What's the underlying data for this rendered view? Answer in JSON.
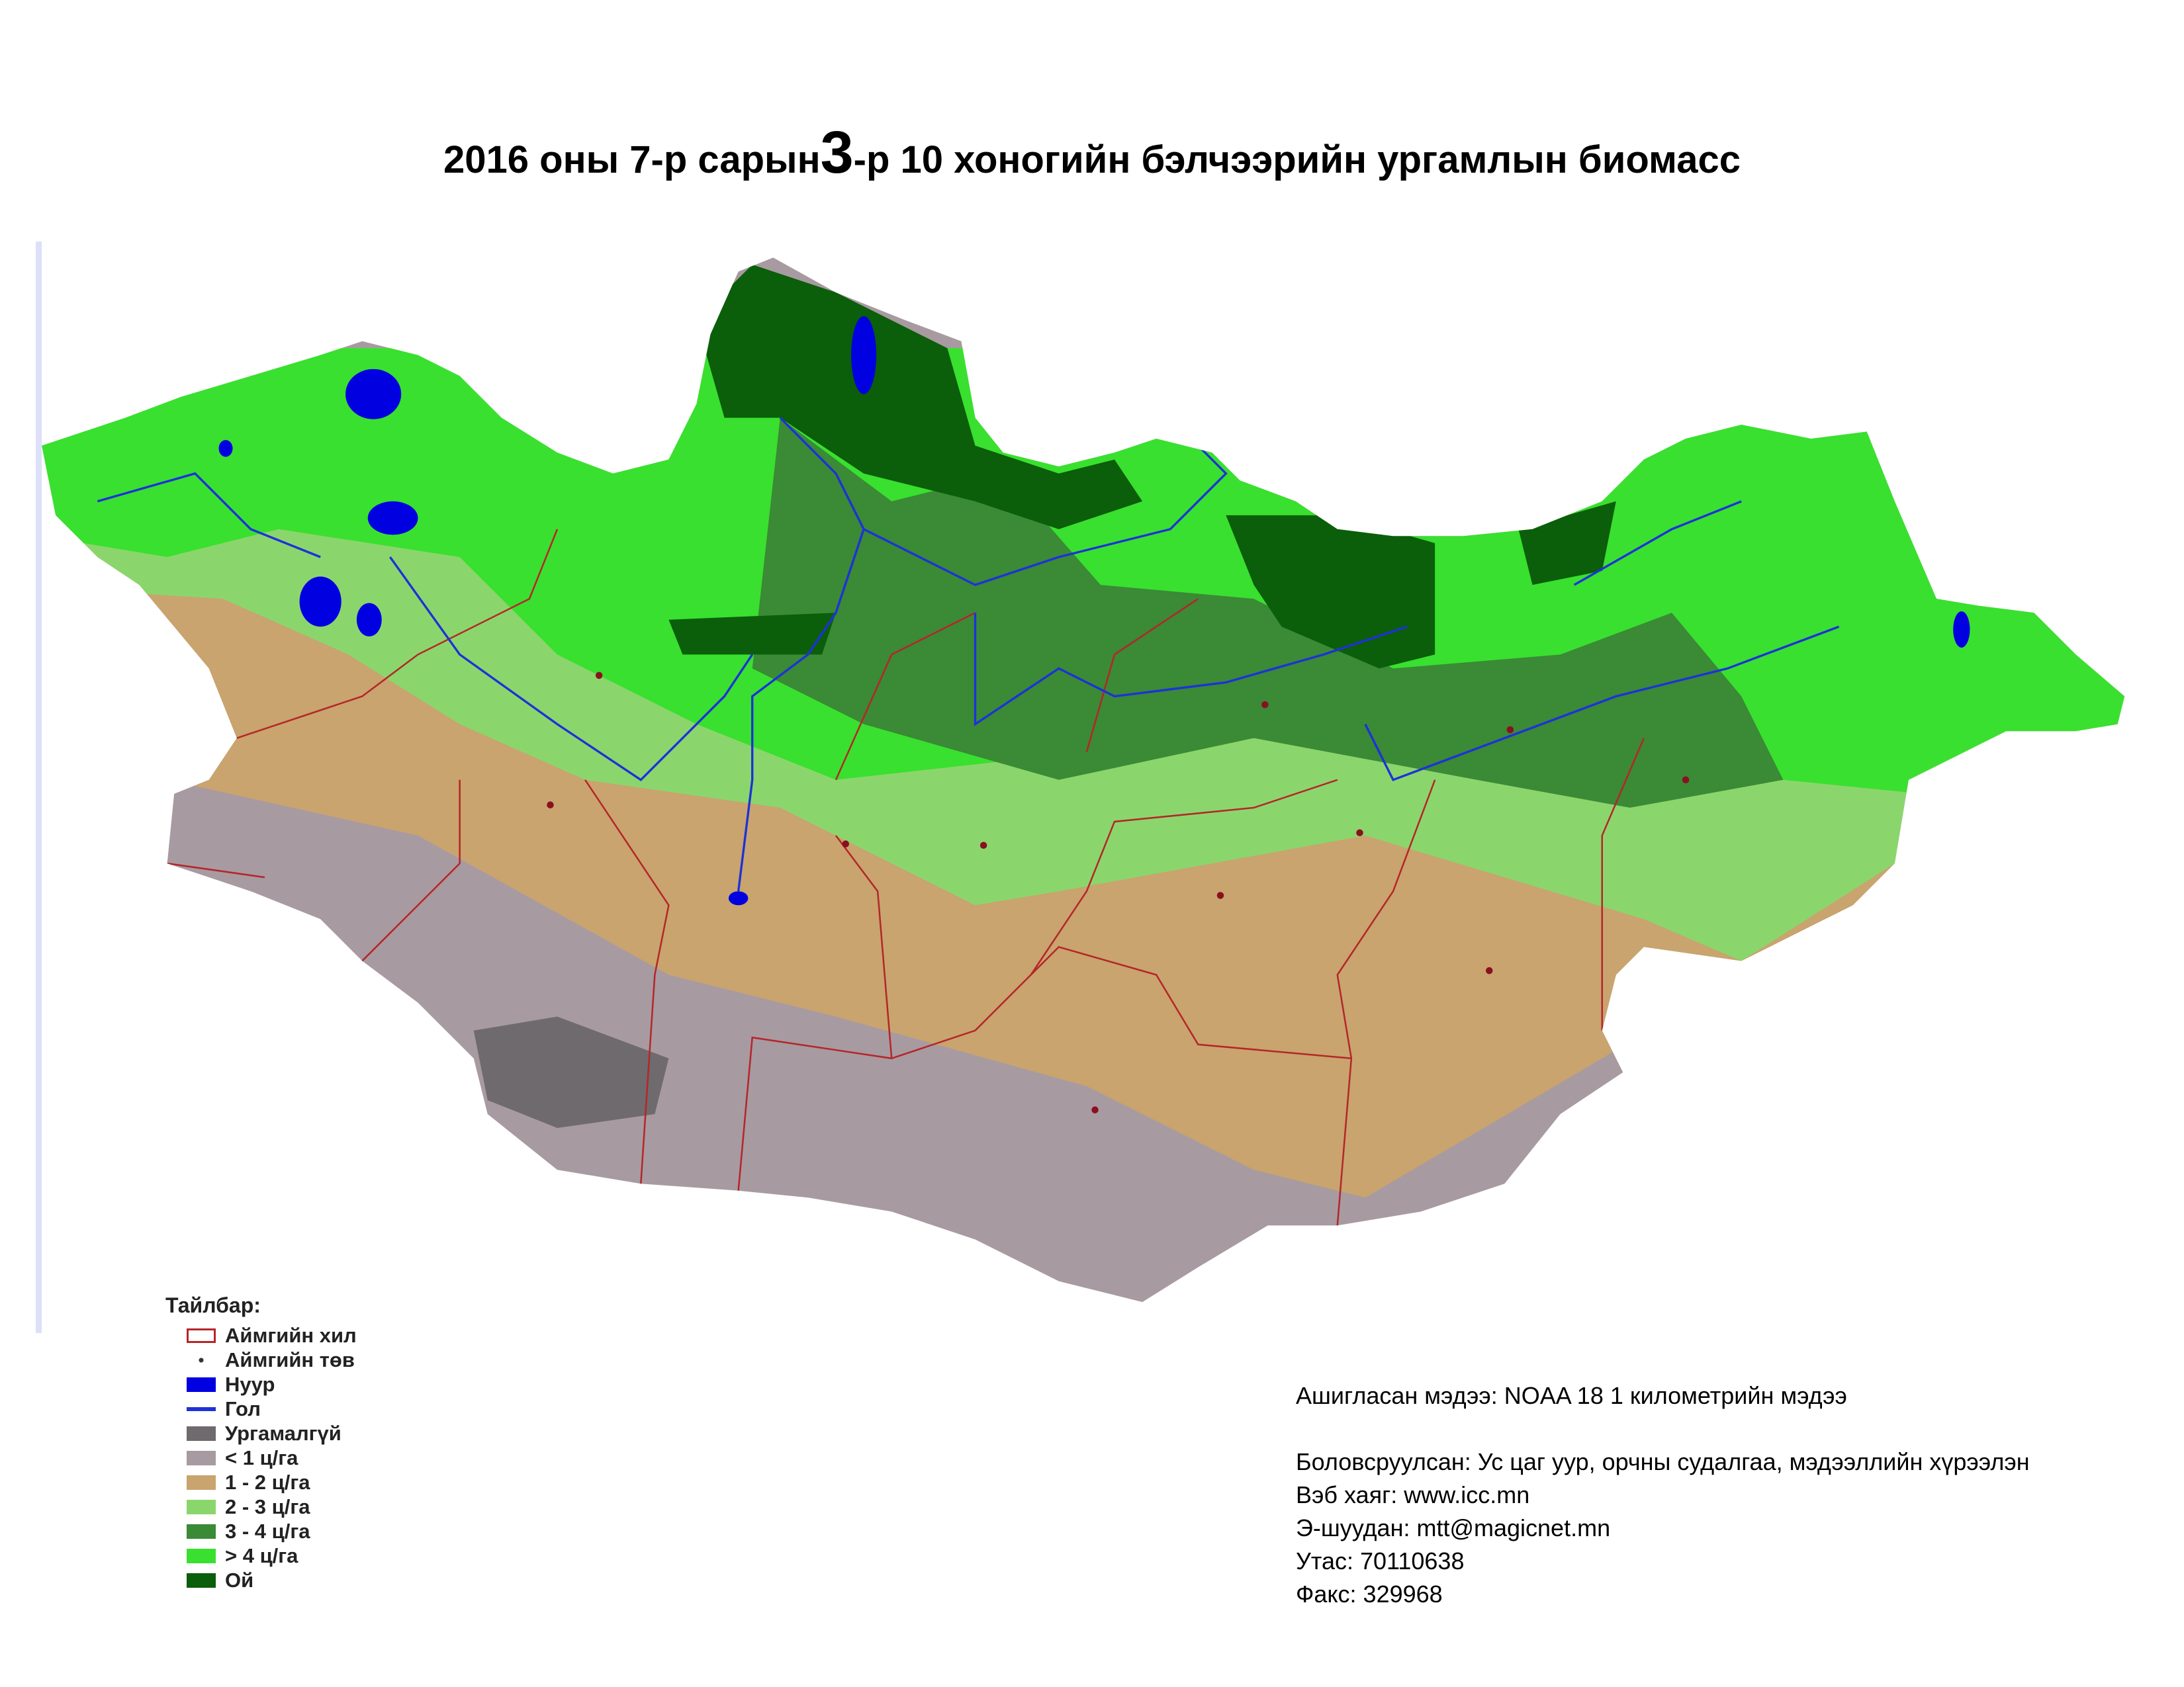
{
  "header": {
    "title_start": "2016 оны 7-р сарын",
    "title_decade": "3",
    "title_end": "-р 10 хоногийн бэлчээрийн ургамлын биомасс"
  },
  "legend": {
    "title": "Тайлбар:",
    "items": [
      "Аймгийн хил",
      "Аймгийн төв",
      "Нуур",
      "Гол",
      "Ургамалгүй",
      "< 1 ц/га",
      "1 - 2 ц/га",
      "2 - 3 ц/га",
      "3 - 4 ц/га",
      "> 4 ц/га",
      "Ой"
    ]
  },
  "info": {
    "source": "Ашигласан мэдээ: NOAA 18 1 километрийн мэдээ",
    "lines": [
      "Боловсруулсан: Ус цаг уур, орчны судалгаа, мэдээллийн хүрээлэн",
      "Вэб хаяг: www.icc.mn",
      "Э-шуудан: mtt@magicnet.mn",
      "Утас: 70110638",
      "Факс: 329968"
    ]
  }
}
